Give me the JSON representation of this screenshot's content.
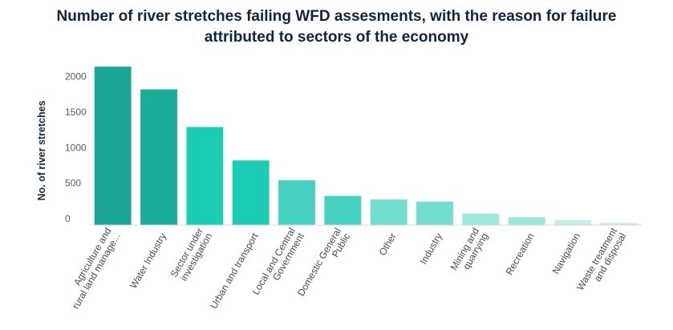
{
  "chart_data": {
    "type": "bar",
    "title_lines": [
      "Number of river stretches failing WFD assesments, with the reason for failure",
      "attributed to sectors of the economy"
    ],
    "ylabel": "No. of river stretches",
    "xlabel": "",
    "ylim": [
      0,
      2300
    ],
    "yticks": [
      0,
      500,
      1000,
      1500,
      2000
    ],
    "grid": false,
    "categories": [
      {
        "lines": [
          "Agriculture and",
          "rural land manage..."
        ]
      },
      {
        "lines": [
          "Water Industry"
        ]
      },
      {
        "lines": [
          "Sector under",
          "investigation"
        ]
      },
      {
        "lines": [
          "Urban and transport"
        ]
      },
      {
        "lines": [
          "Local and Central",
          "Government"
        ]
      },
      {
        "lines": [
          "Domestic General",
          "Public"
        ]
      },
      {
        "lines": [
          "Other"
        ]
      },
      {
        "lines": [
          "Industry"
        ]
      },
      {
        "lines": [
          "Mining and",
          "quarrying"
        ]
      },
      {
        "lines": [
          "Recreation"
        ]
      },
      {
        "lines": [
          "Navigation"
        ]
      },
      {
        "lines": [
          "Waste treatment",
          "and disposal"
        ]
      }
    ],
    "values": [
      2230,
      1910,
      1380,
      910,
      630,
      410,
      360,
      330,
      160,
      110,
      70,
      30
    ],
    "colors": [
      "#1aa894",
      "#1aae99",
      "#1ccdb5",
      "#1ccdb5",
      "#45d3c0",
      "#45d3c0",
      "#72ded0",
      "#72ded0",
      "#9de8de",
      "#9de8de",
      "#c2efe9",
      "#c2efe9"
    ]
  }
}
